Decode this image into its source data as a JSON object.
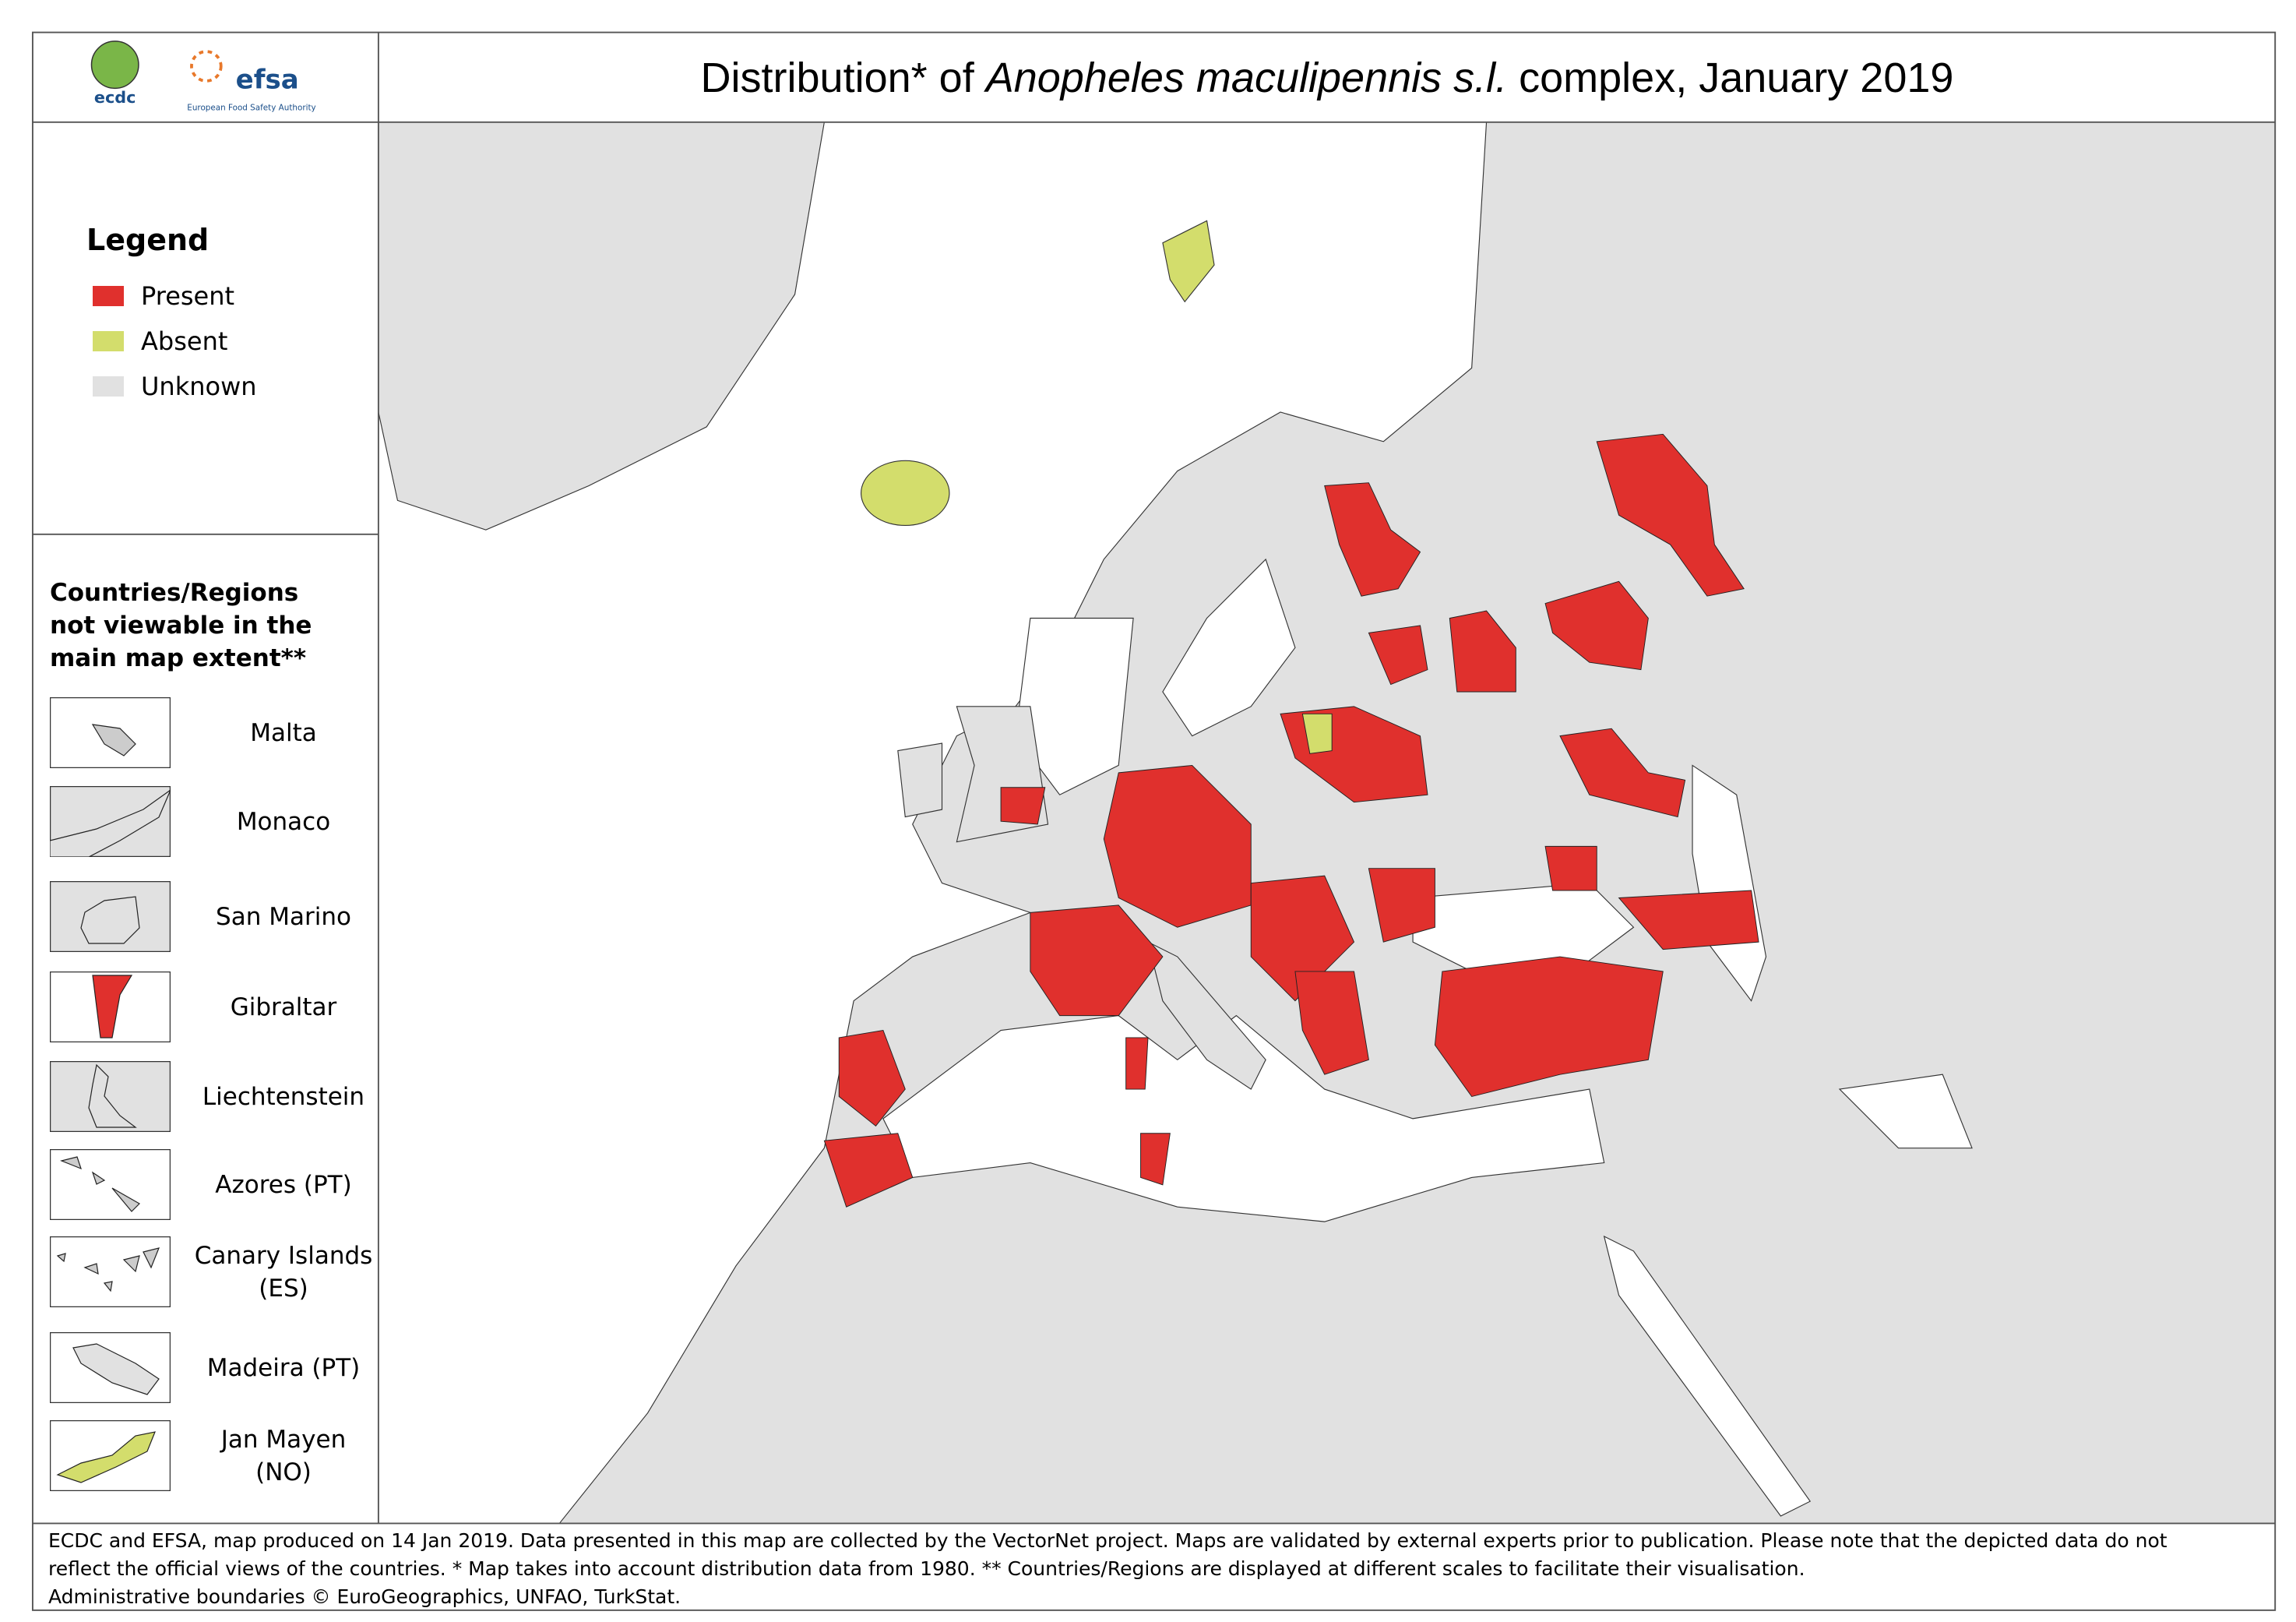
{
  "logos": {
    "ecdc": "ecdc",
    "efsa": "efsa",
    "efsa_tagline": "European Food Safety Authority"
  },
  "title": {
    "prefix": "Distribution* of ",
    "species": "Anopheles maculipennis s.l.",
    "suffix": " complex, January 2019"
  },
  "legend": {
    "heading": "Legend",
    "items": [
      {
        "label": "Present",
        "color": "#e0302d"
      },
      {
        "label": "Absent",
        "color": "#d3dd6c"
      },
      {
        "label": "Unknown",
        "color": "#e1e1e1"
      }
    ]
  },
  "insets": {
    "heading": "Countries/Regions not viewable in the main map extent**",
    "regions": [
      "Malta",
      "Monaco",
      "San Marino",
      "Gibraltar",
      "Liechtenstein",
      "Azores (PT)",
      "Canary Islands (ES)",
      "Madeira (PT)",
      "Jan Mayen (NO)"
    ]
  },
  "footer": [
    "ECDC and EFSA, map produced on 14 Jan 2019. Data presented in this map are collected by the VectorNet project. Maps are validated by external experts prior to publication. Please note that the depicted data do not reflect the official views of the countries. * Map takes into account distribution data from 1980. ** Countries/Regions are displayed at different scales to facilitate their visualisation.",
    "Administrative boundaries © EuroGeographics, UNFAO, TurkStat."
  ]
}
